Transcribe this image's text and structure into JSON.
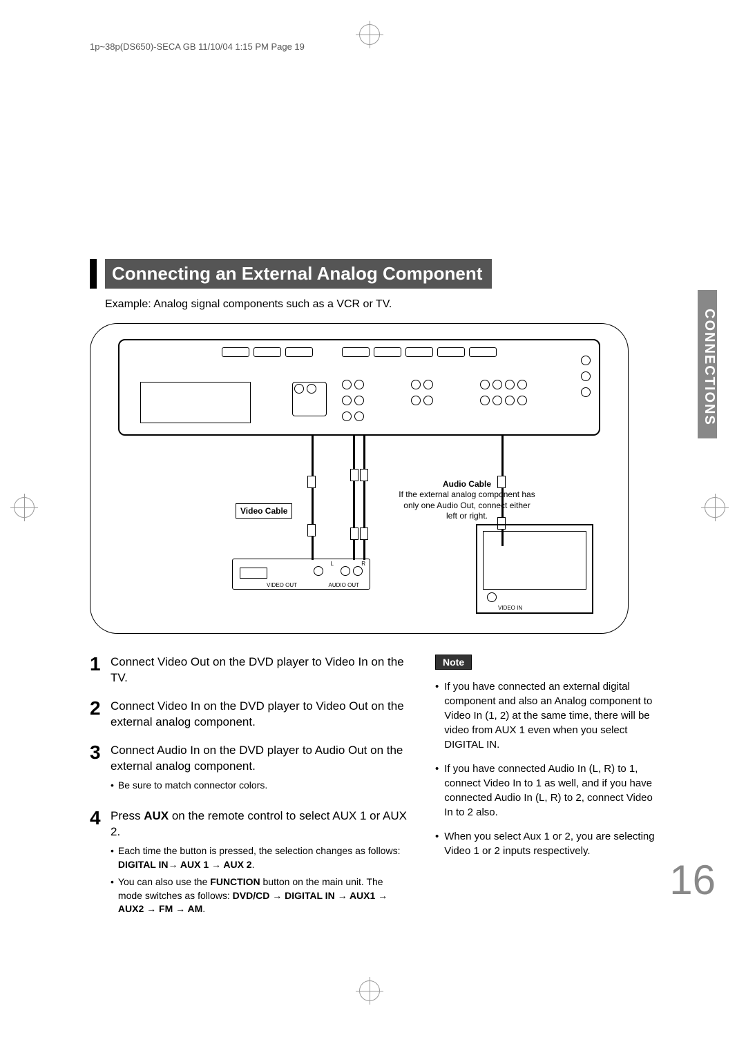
{
  "header": "1p~38p(DS650)-SECA GB  11/10/04 1:15 PM  Page 19",
  "title": "Connecting an External Analog Component",
  "subtitle": "Example: Analog signal components such as a VCR or TV.",
  "sidebar_tab": "CONNECTIONS",
  "diagram": {
    "video_cable_label": "Video Cable",
    "audio_cable_label": "Audio Cable",
    "audio_cable_note": "If the external analog component has only one Audio Out, connect either left or right.",
    "vcr_video_out": "VIDEO OUT",
    "vcr_audio_out": "AUDIO OUT",
    "vcr_L": "L",
    "vcr_R": "R",
    "tv_video_in": "VIDEO IN"
  },
  "steps": [
    {
      "num": "1",
      "body": "Connect Video Out on the DVD player to Video In on the TV."
    },
    {
      "num": "2",
      "body": "Connect Video In on the DVD player to Video Out on the external analog component."
    },
    {
      "num": "3",
      "body": "Connect Audio In on the DVD player to Audio Out on the external analog component.",
      "subs": [
        "Be sure to match connector colors."
      ]
    },
    {
      "num": "4",
      "body_html": "Press <b>AUX</b> on the remote control to select AUX 1 or AUX 2.",
      "subs_html": [
        "Each time the button is pressed, the selection changes as follows: <b>DIGITAL IN→ AUX 1 → AUX 2</b>.",
        "You can also use the <b>FUNCTION</b> button on the main unit. The mode switches as follows: <b>DVD/CD → DIGITAL IN → AUX1 → AUX2 → FM → AM</b>."
      ]
    }
  ],
  "note_label": "Note",
  "notes": [
    "If you have connected an external digital component and also an Analog component to Video In (1, 2) at the same time, there will be video from AUX 1 even when you select DIGITAL IN.",
    "If you have connected Audio In (L, R) to 1, connect Video In to 1 as well, and if you have connected Audio In (L, R) to 2, connect Video In to 2 also.",
    "When you select Aux 1 or 2, you are selecting Video 1 or 2 inputs respectively."
  ],
  "page_number": "16",
  "colors": {
    "title_bg": "#555555",
    "sidebar_bg": "#888888",
    "pagenum": "#888888"
  }
}
